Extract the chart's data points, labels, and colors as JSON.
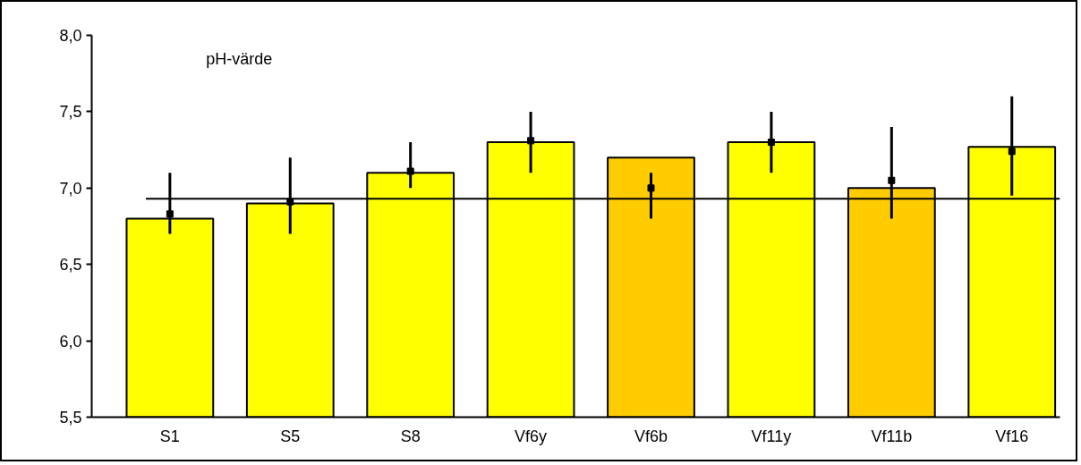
{
  "chart_data": {
    "type": "bar",
    "categories": [
      "S1",
      "S5",
      "S8",
      "Vf6y",
      "Vf6b",
      "Vf11y",
      "Vf11b",
      "Vf16"
    ],
    "series": [
      {
        "colors": [
          "#ffff00",
          "#ffff00",
          "#ffff00",
          "#ffff00",
          "#ffcc00",
          "#ffff00",
          "#ffcc00",
          "#ffff00"
        ],
        "values": [
          6.8,
          6.9,
          7.1,
          7.3,
          7.2,
          7.3,
          7.0,
          7.27
        ],
        "errors": [
          [
            6.7,
            7.1
          ],
          [
            6.7,
            7.2
          ],
          [
            7.0,
            7.3
          ],
          [
            7.1,
            7.5
          ],
          [
            6.8,
            7.1
          ],
          [
            7.1,
            7.5
          ],
          [
            6.8,
            7.4
          ],
          [
            6.95,
            7.6
          ]
        ]
      },
      {
        "type": "scatter",
        "marker": "square",
        "color": "#000000",
        "x": [
          "S1",
          "S5",
          "S8",
          "Vf6y",
          "Vf6b",
          "Vf11y",
          "Vf11b",
          "Vf16"
        ],
        "values": [
          6.83,
          6.91,
          7.11,
          7.31,
          7.0,
          7.3,
          7.05,
          7.24
        ]
      }
    ],
    "ylim": [
      5.5,
      8.0
    ],
    "yticks": [
      {
        "value": 5.5,
        "label": "5,5"
      },
      {
        "value": 6.0,
        "label": "6,0"
      },
      {
        "value": 6.5,
        "label": "6,5"
      },
      {
        "value": 7.0,
        "label": "7,0"
      },
      {
        "value": 7.5,
        "label": "7,5"
      },
      {
        "value": 8.0,
        "label": "8,0"
      }
    ],
    "ref_lines": [
      {
        "axis": "y",
        "value": 6.93,
        "color": "#000000"
      }
    ],
    "annotations": [
      "pH-värde"
    ],
    "grid": false
  }
}
